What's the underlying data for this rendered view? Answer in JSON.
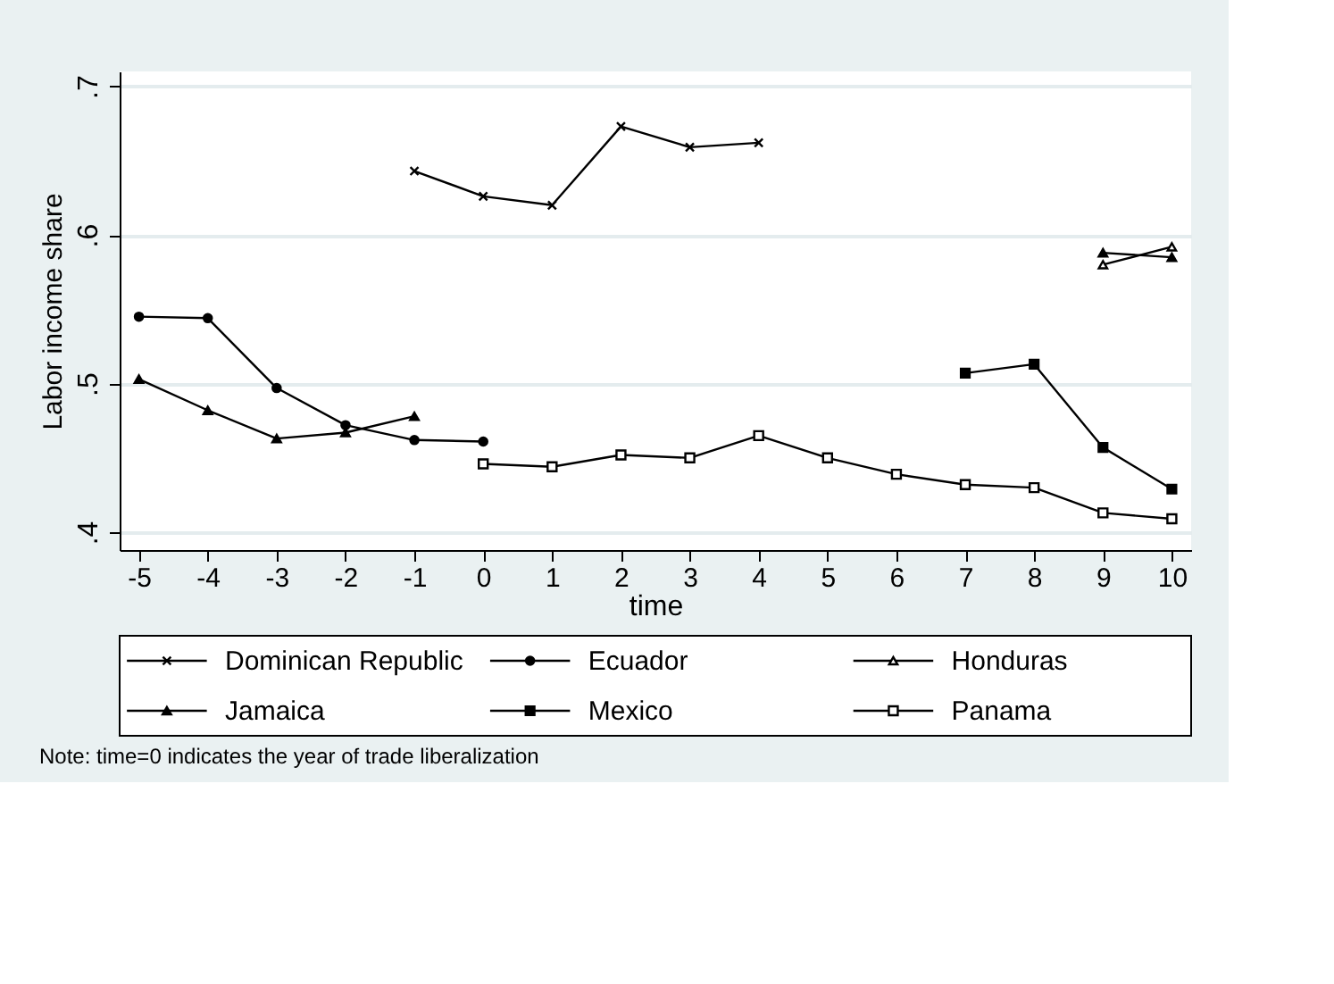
{
  "chart_data": {
    "type": "line",
    "xlabel": "time",
    "ylabel": "Labor income share",
    "x": [
      -5,
      -4,
      -3,
      -2,
      -1,
      0,
      1,
      2,
      3,
      4,
      5,
      6,
      7,
      8,
      9,
      10
    ],
    "series": [
      {
        "name": "Dominican Republic",
        "color": "#000000",
        "marker": "cross",
        "values": [
          null,
          null,
          null,
          null,
          0.643,
          0.626,
          0.62,
          0.673,
          0.659,
          0.662,
          null,
          null,
          null,
          null,
          null,
          null
        ]
      },
      {
        "name": "Ecuador",
        "color": "#000000",
        "marker": "circle",
        "values": [
          0.545,
          0.544,
          0.497,
          0.472,
          0.462,
          0.461,
          null,
          null,
          null,
          null,
          null,
          null,
          null,
          null,
          null,
          null
        ]
      },
      {
        "name": "Honduras",
        "color": "#000000",
        "marker": "triangle",
        "values": [
          null,
          null,
          null,
          null,
          null,
          null,
          null,
          null,
          null,
          null,
          null,
          null,
          null,
          null,
          0.58,
          0.592
        ]
      },
      {
        "name": "Jamaica",
        "color": "#000000",
        "marker": "triangle",
        "values": [
          0.503,
          0.482,
          0.463,
          0.467,
          0.478,
          null,
          null,
          null,
          null,
          null,
          null,
          null,
          null,
          null,
          0.588,
          0.585
        ]
      },
      {
        "name": "Mexico",
        "color": "#000000",
        "marker": "square",
        "values": [
          null,
          null,
          null,
          null,
          null,
          null,
          null,
          null,
          null,
          null,
          null,
          null,
          0.507,
          0.513,
          0.457,
          0.429
        ]
      },
      {
        "name": "Panama",
        "color": "#000000",
        "marker": "square",
        "values": [
          null,
          null,
          null,
          null,
          null,
          0.446,
          0.444,
          0.452,
          0.45,
          0.465,
          0.45,
          0.439,
          0.432,
          0.43,
          0.413,
          0.409
        ]
      }
    ],
    "xlim": [
      -5.28,
      10.28
    ],
    "xticks": [
      -5,
      -4,
      -3,
      -2,
      -1,
      0,
      1,
      2,
      3,
      4,
      5,
      6,
      7,
      8,
      9,
      10
    ],
    "ylim": [
      0.388,
      0.71
    ],
    "yticks": [
      {
        "value": 0.4,
        "label": ".4"
      },
      {
        "value": 0.5,
        "label": ".5"
      },
      {
        "value": 0.6,
        "label": ".6"
      },
      {
        "value": 0.7,
        "label": ".7"
      }
    ],
    "grid": "y",
    "legend": "bottom",
    "line_style": "solid",
    "annotations": [
      "Note: time=0 indicates the year of trade liberalization"
    ]
  }
}
